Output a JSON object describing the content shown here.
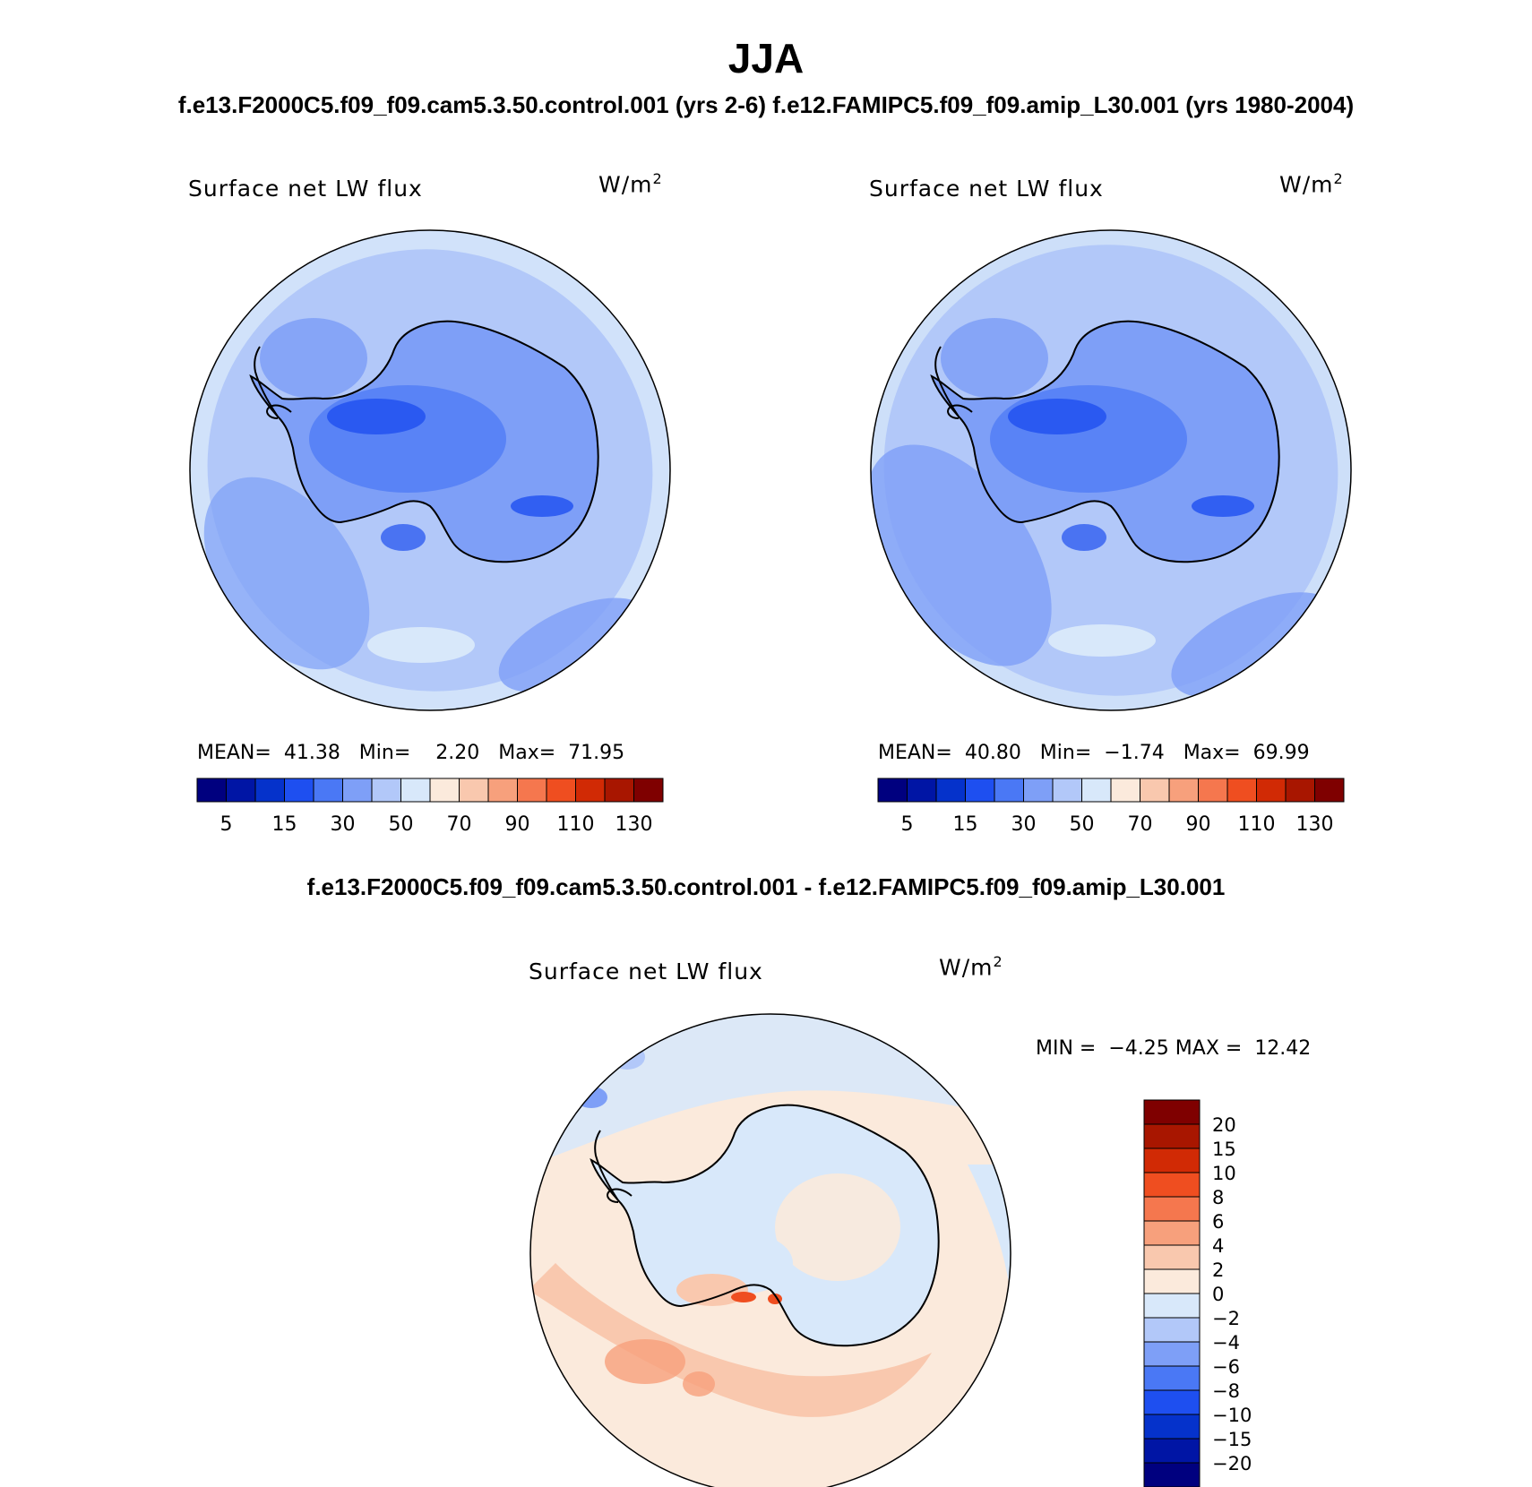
{
  "header": {
    "title": "JJA",
    "subtitle": "f.e13.F2000C5.f09_f09.cam5.3.50.control.001 (yrs 2-6)  f.e12.FAMIPC5.f09_f09.amip_L30.001 (yrs 1980-2004)",
    "diff_title": "f.e13.F2000C5.f09_f09.cam5.3.50.control.001 - f.e12.FAMIPC5.f09_f09.amip_L30.001"
  },
  "panels": [
    {
      "variable": "Surface net LW flux",
      "units": "W/m",
      "units_exp": "2",
      "stats": {
        "mean_label": "MEAN=",
        "mean": "41.38",
        "min_label": "Min=",
        "min": "2.20",
        "max_label": "Max=",
        "max": "71.95"
      }
    },
    {
      "variable": "Surface net LW flux",
      "units": "W/m",
      "units_exp": "2",
      "stats": {
        "mean_label": "MEAN=",
        "mean": "40.80",
        "min_label": "Min=",
        "min": "−1.74",
        "max_label": "Max=",
        "max": "69.99"
      }
    }
  ],
  "diff_panel": {
    "variable": "Surface net LW flux",
    "units": "W/m",
    "units_exp": "2",
    "stats": {
      "min_label": "MIN =",
      "min": "−4.25",
      "max_label": "MAX =",
      "max": "12.42"
    }
  },
  "colorbar_abs": {
    "colors": [
      "#00007f",
      "#0015a5",
      "#0532cb",
      "#1e4ff0",
      "#4a78f5",
      "#7e9ff7",
      "#b2c8f9",
      "#d8e8fa",
      "#fbeadc",
      "#f9c8ae",
      "#f7a07c",
      "#f5774e",
      "#ef4e20",
      "#d12a05",
      "#a81600",
      "#7f0000"
    ],
    "labels": [
      "5",
      "15",
      "30",
      "50",
      "70",
      "90",
      "110",
      "130"
    ]
  },
  "colorbar_diff": {
    "colors": [
      "#7f0000",
      "#a81600",
      "#d12a05",
      "#ef4e20",
      "#f5774e",
      "#f7a07c",
      "#f9c8ae",
      "#fbeadc",
      "#d8e8fa",
      "#b2c8f9",
      "#7e9ff7",
      "#4a78f5",
      "#1e4ff0",
      "#0532cb",
      "#0015a5",
      "#00007f"
    ],
    "labels": [
      "20",
      "15",
      "10",
      "8",
      "6",
      "4",
      "2",
      "0",
      "−2",
      "−4",
      "−6",
      "−8",
      "−10",
      "−15",
      "−20"
    ]
  }
}
